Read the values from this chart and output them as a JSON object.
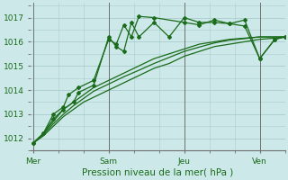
{
  "xlabel": "Pression niveau de la mer( hPa )",
  "bg_color": "#cce8e8",
  "line_color": "#1a6b1a",
  "grid_color": "#aacccc",
  "ylim": [
    1011.6,
    1017.6
  ],
  "yticks": [
    1012,
    1013,
    1014,
    1015,
    1016,
    1017
  ],
  "day_labels": [
    "Mer",
    "Sam",
    "Jeu",
    "Ven"
  ],
  "day_positions": [
    0,
    30,
    60,
    90
  ],
  "xlim": [
    -1,
    100
  ],
  "series_smooth": [
    {
      "x": [
        0,
        4,
        8,
        12,
        16,
        20,
        24,
        30,
        36,
        42,
        48,
        54,
        60,
        66,
        72,
        78,
        84,
        90,
        96,
        100
      ],
      "y": [
        1011.8,
        1012.2,
        1012.7,
        1013.2,
        1013.5,
        1013.8,
        1014.1,
        1014.4,
        1014.7,
        1015.0,
        1015.3,
        1015.5,
        1015.7,
        1015.9,
        1016.0,
        1016.1,
        1016.15,
        1016.2,
        1016.2,
        1016.2
      ]
    },
    {
      "x": [
        0,
        4,
        8,
        12,
        16,
        20,
        24,
        30,
        36,
        42,
        48,
        54,
        60,
        66,
        72,
        78,
        84,
        90,
        96,
        100
      ],
      "y": [
        1011.8,
        1012.1,
        1012.5,
        1012.9,
        1013.2,
        1013.5,
        1013.7,
        1014.0,
        1014.3,
        1014.6,
        1014.9,
        1015.1,
        1015.4,
        1015.6,
        1015.8,
        1015.9,
        1016.0,
        1016.1,
        1016.15,
        1016.2
      ]
    },
    {
      "x": [
        0,
        4,
        8,
        12,
        16,
        20,
        24,
        30,
        36,
        42,
        48,
        54,
        60,
        66,
        72,
        78,
        84,
        90,
        96,
        100
      ],
      "y": [
        1011.8,
        1012.15,
        1012.6,
        1013.0,
        1013.35,
        1013.65,
        1013.95,
        1014.25,
        1014.55,
        1014.82,
        1015.1,
        1015.35,
        1015.6,
        1015.78,
        1015.95,
        1016.07,
        1016.13,
        1016.2,
        1016.2,
        1016.2
      ]
    }
  ],
  "series_marked": [
    {
      "x": [
        0,
        4,
        8,
        12,
        16,
        18,
        24,
        30,
        33,
        36,
        39,
        42,
        48,
        54,
        60,
        66,
        72,
        78,
        84,
        90,
        96,
        100
      ],
      "y": [
        1011.8,
        1012.2,
        1012.8,
        1013.2,
        1013.5,
        1013.9,
        1014.2,
        1016.2,
        1015.8,
        1015.6,
        1016.8,
        1016.2,
        1016.8,
        1016.2,
        1017.0,
        1016.8,
        1016.8,
        1016.75,
        1016.9,
        1015.3,
        1016.1,
        1016.2
      ]
    },
    {
      "x": [
        0,
        4,
        8,
        12,
        14,
        18,
        24,
        30,
        33,
        36,
        39,
        42,
        48,
        60,
        66,
        72,
        78,
        84,
        90,
        96,
        100
      ],
      "y": [
        1011.8,
        1012.2,
        1013.0,
        1013.3,
        1013.8,
        1014.1,
        1014.4,
        1016.1,
        1015.9,
        1016.7,
        1016.2,
        1017.05,
        1017.0,
        1016.8,
        1016.7,
        1016.9,
        1016.75,
        1016.65,
        1015.3,
        1016.1,
        1016.2
      ]
    }
  ]
}
